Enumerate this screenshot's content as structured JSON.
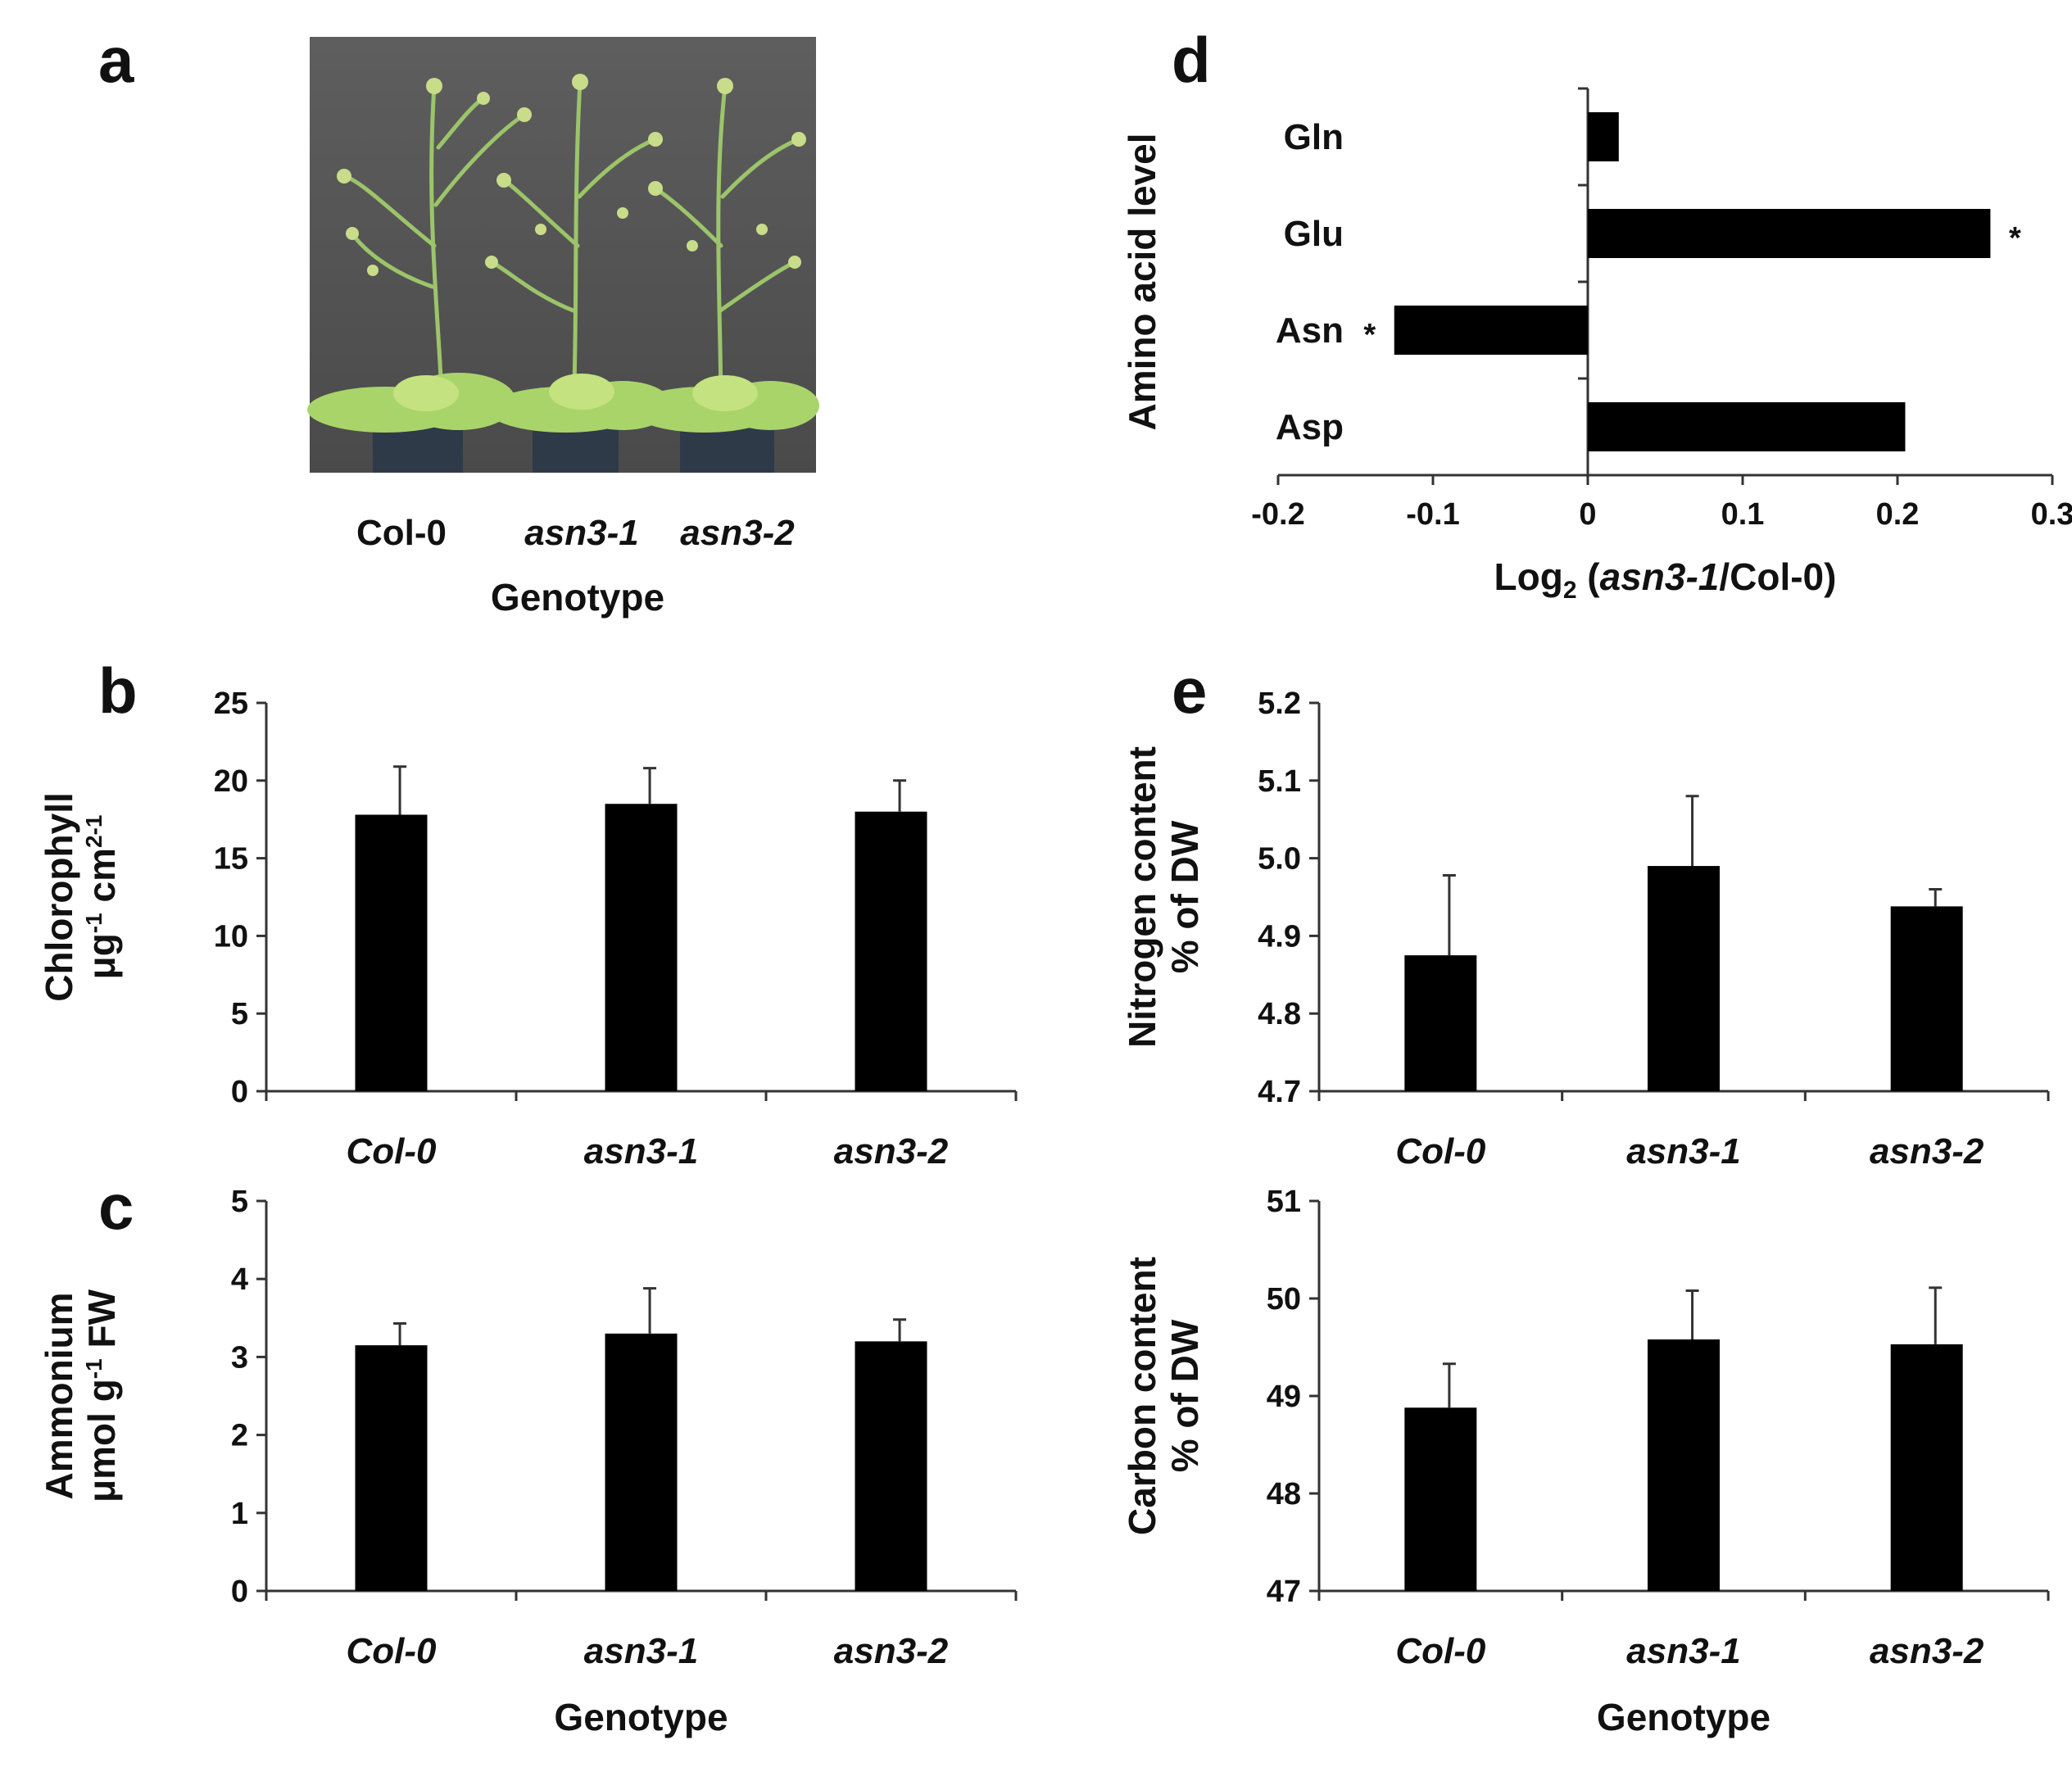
{
  "panel_letters": [
    "a",
    "b",
    "c",
    "d",
    "e"
  ],
  "panel_a": {
    "photo": "arabidopsis-plants-photo",
    "labels": [
      "Col-0",
      "asn3-1",
      "asn3-2"
    ],
    "xlabel": "Genotype"
  },
  "chart_data": [
    {
      "id": "b",
      "type": "bar",
      "categories": [
        "Col-0",
        "asn3-1",
        "asn3-2"
      ],
      "values": [
        17.8,
        18.5,
        18.0
      ],
      "errors": [
        3.1,
        2.3,
        2.0
      ],
      "ylim": [
        0,
        25
      ],
      "ticks": [
        0,
        5,
        10,
        15,
        20,
        25
      ],
      "ylabel_lines": [
        "Chlorophyll",
        "μg-1 cm2-1"
      ],
      "xlabel": "",
      "grid": false
    },
    {
      "id": "c",
      "type": "bar",
      "categories": [
        "Col-0",
        "asn3-1",
        "asn3-2"
      ],
      "values": [
        3.15,
        3.3,
        3.2
      ],
      "errors": [
        0.28,
        0.58,
        0.28
      ],
      "ylim": [
        0,
        5
      ],
      "ticks": [
        0,
        1,
        2,
        3,
        4,
        5
      ],
      "ylabel_lines": [
        "Ammonium",
        "μmol g-1 FW"
      ],
      "xlabel": "Genotype",
      "grid": false
    },
    {
      "id": "d",
      "type": "bar",
      "orientation": "horizontal",
      "categories": [
        "Gln",
        "Glu",
        "Asn",
        "Asp"
      ],
      "values": [
        0.02,
        0.26,
        -0.125,
        0.205
      ],
      "significant": [
        false,
        true,
        true,
        false
      ],
      "xlim": [
        -0.2,
        0.3
      ],
      "ticks": [
        -0.2,
        -0.1,
        0,
        0.1,
        0.2,
        0.3
      ],
      "tick_labels": [
        "-0.2",
        "-0.1",
        "0",
        "0.1",
        "0.2",
        "0.3"
      ],
      "ylabel": "Amino acid level",
      "xlabel": "Log2 (asn3-1/Col-0)",
      "xlabel_parts": [
        "Log",
        "2",
        " (",
        "asn3-1",
        "/Col-0)"
      ],
      "grid": false
    },
    {
      "id": "e-top",
      "type": "bar",
      "categories": [
        "Col-0",
        "asn3-1",
        "asn3-2"
      ],
      "values": [
        4.875,
        4.99,
        4.938
      ],
      "errors": [
        0.103,
        0.09,
        0.022
      ],
      "ylim": [
        4.7,
        5.2
      ],
      "ticks": [
        4.7,
        4.8,
        4.9,
        5.0,
        5.1,
        5.2
      ],
      "tick_labels": [
        "4.7",
        "4.8",
        "4.9",
        "5.0",
        "5.1",
        "5.2"
      ],
      "ylabel_lines": [
        "Nitrogen content",
        "% of DW"
      ],
      "xlabel": "",
      "grid": false
    },
    {
      "id": "e-bottom",
      "type": "bar",
      "categories": [
        "Col-0",
        "asn3-1",
        "asn3-2"
      ],
      "values": [
        48.88,
        49.58,
        49.53
      ],
      "errors": [
        0.45,
        0.5,
        0.58
      ],
      "ylim": [
        47,
        51
      ],
      "ticks": [
        47,
        48,
        49,
        50,
        51
      ],
      "ylabel_lines": [
        "Carbon content",
        "% of DW"
      ],
      "xlabel": "Genotype",
      "grid": false
    }
  ]
}
